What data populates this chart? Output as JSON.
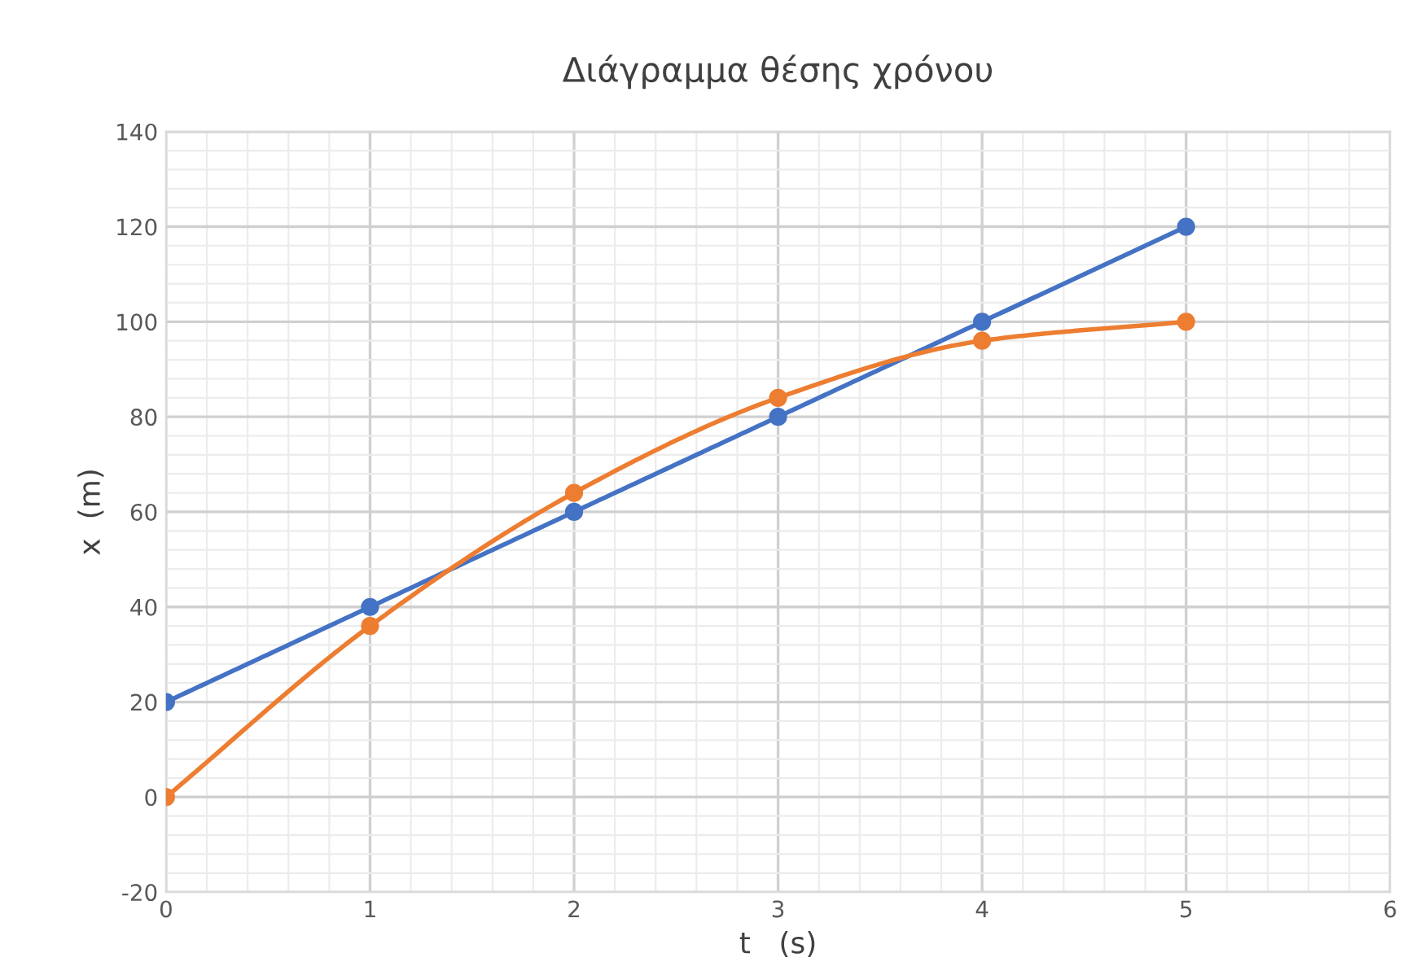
{
  "chart_data": {
    "type": "line",
    "title": "Διάγραμμα θέσης χρόνου",
    "xlabel": "t   (s)",
    "ylabel": "x  (m)",
    "x": [
      0,
      1,
      2,
      3,
      4,
      5
    ],
    "series": [
      {
        "color": "#4472c4",
        "values": [
          20,
          40,
          60,
          80,
          100,
          120
        ]
      },
      {
        "color": "#ed7d31",
        "values": [
          0,
          36,
          64,
          84,
          96,
          100
        ]
      }
    ],
    "xlim": [
      0,
      6
    ],
    "xticks": [
      0,
      1,
      2,
      3,
      4,
      5,
      6
    ],
    "ylim": [
      -20,
      140
    ],
    "yticks": [
      -20,
      0,
      20,
      40,
      60,
      80,
      100,
      120,
      140
    ],
    "grid": true,
    "marker": "circle",
    "line_style": "solid",
    "legend": false
  }
}
